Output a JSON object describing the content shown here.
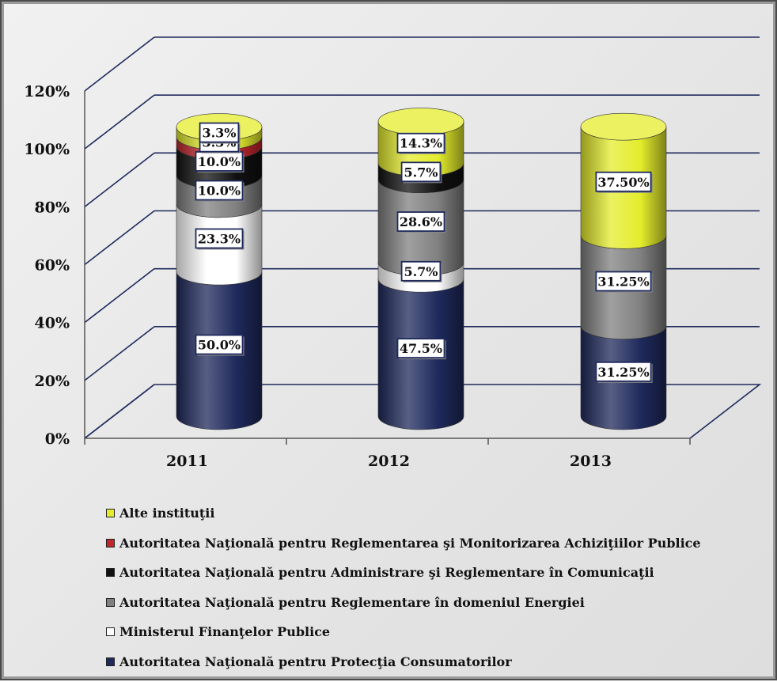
{
  "chart_data": {
    "type": "bar",
    "stacked": true,
    "style": "3d-cylinder",
    "title": "",
    "xlabel": "",
    "ylabel": "",
    "ylim": [
      0,
      120
    ],
    "yticks": [
      "0%",
      "20%",
      "40%",
      "60%",
      "80%",
      "100%",
      "120%"
    ],
    "categories": [
      "2011",
      "2012",
      "2013"
    ],
    "grid": true,
    "legend_position": "bottom",
    "series": [
      {
        "name": "Autoritatea Naţională pentru Protecţia Consumatorilor",
        "color": "#1f2a5c",
        "values": [
          50.0,
          47.5,
          31.25
        ],
        "labels": [
          "50.0%",
          "47.5%",
          "31.25%"
        ]
      },
      {
        "name": "Ministerul Finanţelor Publice",
        "color": "#ffffff",
        "values": [
          23.3,
          5.7,
          0
        ],
        "labels": [
          "23.3%",
          "5.7%",
          ""
        ]
      },
      {
        "name": "Autoritatea Naţională pentru Reglementare în domeniul Energiei",
        "color": "#808080",
        "values": [
          10.0,
          28.6,
          31.25
        ],
        "labels": [
          "10.0%",
          "28.6%",
          "31.25%"
        ]
      },
      {
        "name": "Autoritatea Naţională pentru Administrare şi Reglementare în Comunicaţii",
        "color": "#111111",
        "values": [
          10.0,
          5.7,
          0
        ],
        "labels": [
          "10.0%",
          "5.7%",
          ""
        ]
      },
      {
        "name": "Autoritatea Naţională pentru Reglementarea şi Monitorizarea Achiziţiilor Publice",
        "color": "#c0262c",
        "values": [
          3.3,
          0,
          0
        ],
        "labels": [
          "3.3%",
          "",
          ""
        ]
      },
      {
        "name": "Alte instituţii",
        "color": "#e4ec2c",
        "values": [
          3.3,
          14.3,
          37.5
        ],
        "labels": [
          "3.3%",
          "14.3%",
          "37.50%"
        ]
      }
    ]
  }
}
